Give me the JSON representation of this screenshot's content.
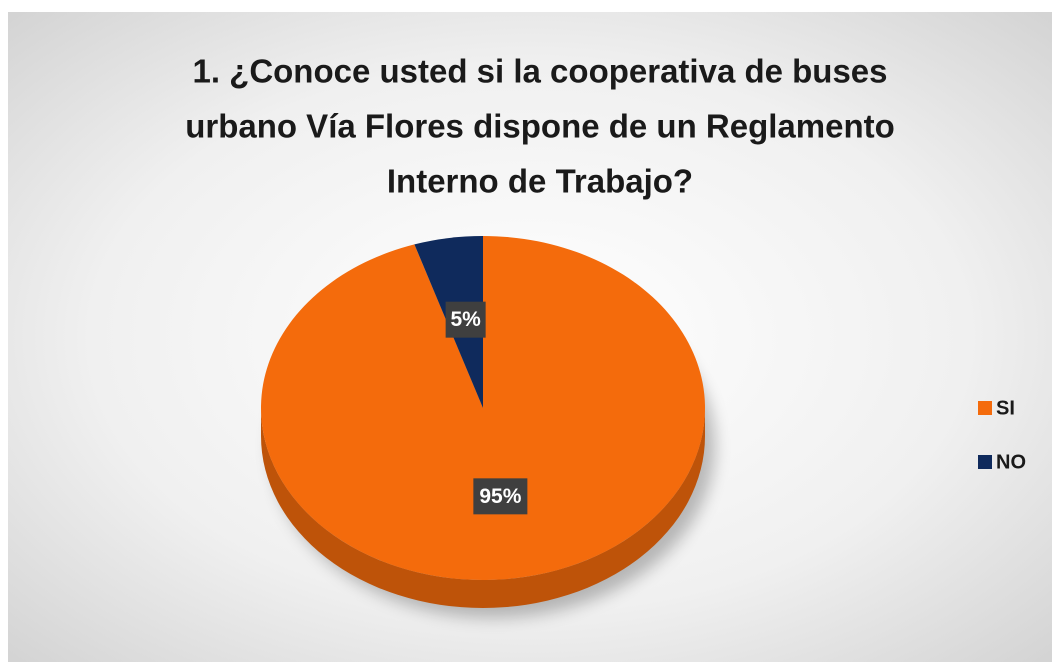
{
  "chart_data": {
    "type": "pie",
    "title": [
      "1. ¿Conoce usted si la cooperativa de buses",
      "urbano Vía Flores dispone de un Reglamento",
      "Interno de Trabajo?"
    ],
    "categories": [
      "SI",
      "NO"
    ],
    "values": [
      95,
      5
    ],
    "value_labels": [
      "95%",
      "5%"
    ],
    "colors": [
      "#f46b0c",
      "#0f2a5c"
    ],
    "legend": "right"
  }
}
